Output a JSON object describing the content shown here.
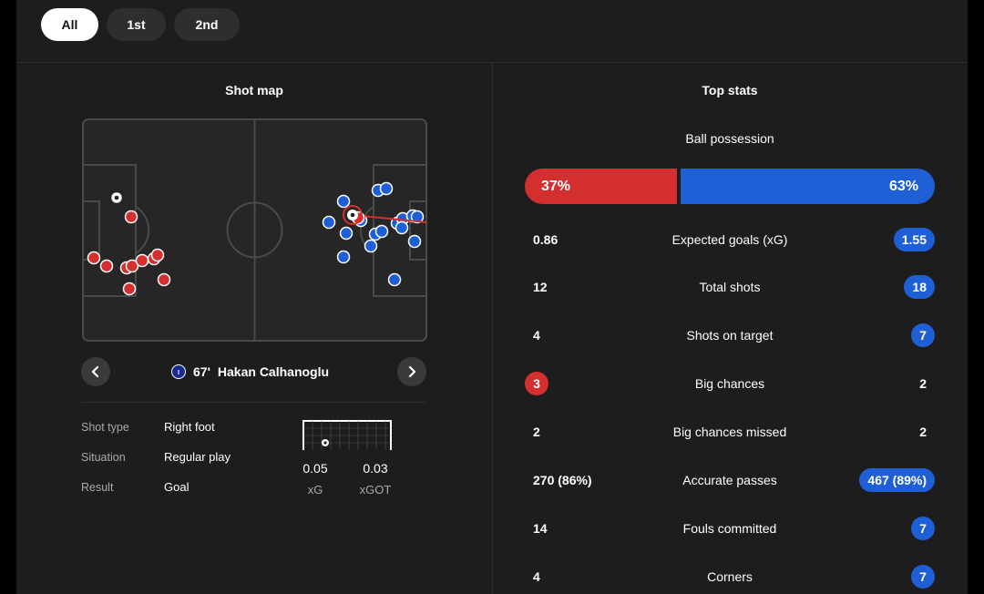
{
  "tabs": [
    {
      "label": "All",
      "active": true
    },
    {
      "label": "1st",
      "active": false
    },
    {
      "label": "2nd",
      "active": false
    }
  ],
  "shot_map": {
    "title": "Shot map",
    "player": {
      "minute": "67'",
      "name": "Hakan Calhanoglu",
      "team_icon": "inter-crest-icon"
    },
    "details": [
      {
        "label": "Shot type",
        "value": "Right foot"
      },
      {
        "label": "Situation",
        "value": "Regular play"
      },
      {
        "label": "Result",
        "value": "Goal"
      }
    ],
    "xg": {
      "value": "0.05",
      "label": "xG"
    },
    "xgot": {
      "value": "0.03",
      "label": "xGOT"
    },
    "colors": {
      "home": "#d42f2f",
      "away": "#1f5fd6"
    }
  },
  "top_stats": {
    "title": "Top stats",
    "possession": {
      "label": "Ball possession",
      "home": "37%",
      "away": "63%",
      "home_fraction": 0.37
    },
    "rows": [
      {
        "label": "Expected goals (xG)",
        "home": "0.86",
        "away": "1.55",
        "highlight": "away"
      },
      {
        "label": "Total shots",
        "home": "12",
        "away": "18",
        "highlight": "away"
      },
      {
        "label": "Shots on target",
        "home": "4",
        "away": "7",
        "highlight": "away"
      },
      {
        "label": "Big chances",
        "home": "3",
        "away": "2",
        "highlight": "home"
      },
      {
        "label": "Big chances missed",
        "home": "2",
        "away": "2",
        "highlight": "none"
      },
      {
        "label": "Accurate passes",
        "home": "270 (86%)",
        "away": "467 (89%)",
        "highlight": "away"
      },
      {
        "label": "Fouls committed",
        "home": "14",
        "away": "7",
        "highlight": "away"
      },
      {
        "label": "Corners",
        "home": "4",
        "away": "7",
        "highlight": "away"
      }
    ]
  }
}
